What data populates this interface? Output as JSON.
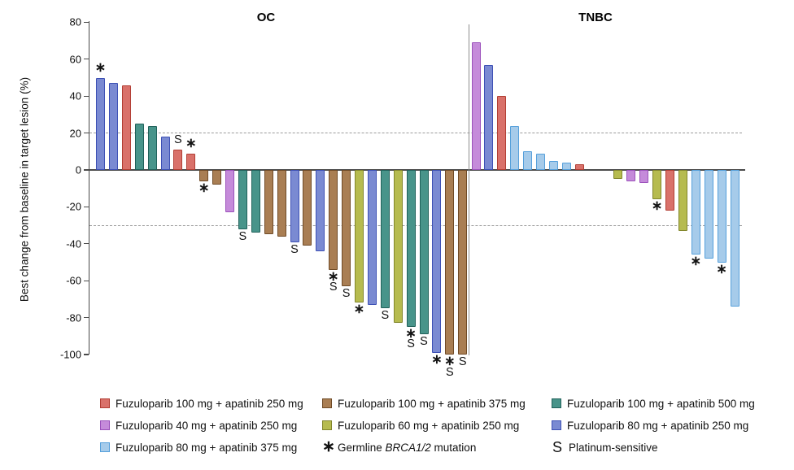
{
  "chart": {
    "chart_data": {
      "type": "bar",
      "subtype": "waterfall",
      "ylabel": "Best change from baseline in target lesion (%)",
      "ylim": [
        -100,
        80
      ],
      "yticks": [
        80,
        60,
        40,
        20,
        0,
        -20,
        -40,
        -60,
        -80,
        -100
      ],
      "reference_lines": [
        20,
        -30
      ],
      "legend_position": "bottom",
      "grid": "off"
    },
    "ylabel": "Best change from baseline in target lesion (%)",
    "yticks": [
      80,
      60,
      40,
      20,
      0,
      -20,
      -40,
      -60,
      -80,
      -100
    ],
    "reference_lines": [
      20,
      -30
    ],
    "doses": {
      "f100a250": {
        "label": "Fuzuloparib 100 mg + apatinib 250 mg",
        "fill": "#D9716A",
        "border": "#B23E34"
      },
      "f100a375": {
        "label": "Fuzuloparib 100 mg + apatinib 375 mg",
        "fill": "#A97E53",
        "border": "#6F4A26"
      },
      "f100a500": {
        "label": "Fuzuloparib 100 mg + apatinib 500 mg",
        "fill": "#48948A",
        "border": "#20615A"
      },
      "f40a250": {
        "label": "Fuzuloparib 40 mg + apatinib 250 mg",
        "fill": "#C58BDA",
        "border": "#9B51BB"
      },
      "f60a250": {
        "label": "Fuzuloparib 60 mg + apatinib 250 mg",
        "fill": "#B6BB4F",
        "border": "#82862C"
      },
      "f80a250": {
        "label": "Fuzuloparib 80 mg + apatinib 250 mg",
        "fill": "#7A8AD2",
        "border": "#3D50B5"
      },
      "f80a375": {
        "label": "Fuzuloparib 80 mg + apatinib 375 mg",
        "fill": "#A6CBEA",
        "border": "#56A0DB"
      }
    },
    "markers": {
      "star": {
        "symbol": "∗",
        "label_pre": "Germline ",
        "label_italic": "BRCA1/2",
        "label_post": " mutation"
      },
      "s": {
        "symbol": "S",
        "label": "Platinum-sensitive"
      }
    },
    "legend_columns": [
      [
        "f100a250",
        "f40a250",
        "f80a375"
      ],
      [
        "f100a375",
        "f60a250",
        "star"
      ],
      [
        "f100a500",
        "f80a250",
        "s"
      ]
    ],
    "groups": [
      {
        "name": "OC",
        "bars": [
          {
            "value": 50,
            "dose": "f80a250",
            "markers": [
              "star"
            ]
          },
          {
            "value": 47,
            "dose": "f80a250",
            "markers": []
          },
          {
            "value": 46,
            "dose": "f100a250",
            "markers": []
          },
          {
            "value": 25,
            "dose": "f100a500",
            "markers": []
          },
          {
            "value": 24,
            "dose": "f100a500",
            "markers": []
          },
          {
            "value": 18,
            "dose": "f80a250",
            "markers": []
          },
          {
            "value": 11,
            "dose": "f100a250",
            "markers": [
              "s"
            ]
          },
          {
            "value": 9,
            "dose": "f100a250",
            "markers": [
              "star"
            ]
          },
          {
            "value": -6,
            "dose": "f100a375",
            "markers": [
              "star"
            ]
          },
          {
            "value": -8,
            "dose": "f100a375",
            "markers": []
          },
          {
            "value": -23,
            "dose": "f40a250",
            "markers": []
          },
          {
            "value": -32,
            "dose": "f100a500",
            "markers": [
              "s"
            ]
          },
          {
            "value": -34,
            "dose": "f100a500",
            "markers": []
          },
          {
            "value": -35,
            "dose": "f100a375",
            "markers": []
          },
          {
            "value": -36,
            "dose": "f100a375",
            "markers": []
          },
          {
            "value": -39,
            "dose": "f80a250",
            "markers": [
              "s"
            ]
          },
          {
            "value": -41,
            "dose": "f100a375",
            "markers": []
          },
          {
            "value": -44,
            "dose": "f80a250",
            "markers": []
          },
          {
            "value": -54,
            "dose": "f100a375",
            "markers": [
              "star",
              "s"
            ]
          },
          {
            "value": -63,
            "dose": "f100a375",
            "markers": [
              "s"
            ]
          },
          {
            "value": -72,
            "dose": "f60a250",
            "markers": [
              "star"
            ]
          },
          {
            "value": -73,
            "dose": "f80a250",
            "markers": []
          },
          {
            "value": -75,
            "dose": "f100a500",
            "markers": [
              "s"
            ]
          },
          {
            "value": -83,
            "dose": "f60a250",
            "markers": []
          },
          {
            "value": -85,
            "dose": "f100a500",
            "markers": [
              "star",
              "s"
            ]
          },
          {
            "value": -89,
            "dose": "f100a500",
            "markers": [
              "s"
            ]
          },
          {
            "value": -99,
            "dose": "f80a250",
            "markers": [
              "star"
            ]
          },
          {
            "value": -100,
            "dose": "f100a375",
            "markers": [
              "star",
              "s"
            ]
          },
          {
            "value": -100,
            "dose": "f100a375",
            "markers": [
              "s"
            ]
          }
        ]
      },
      {
        "name": "TNBC",
        "gap_before_index": 9,
        "gap_slots": 2,
        "bars": [
          {
            "value": 69,
            "dose": "f40a250",
            "markers": []
          },
          {
            "value": 57,
            "dose": "f80a250",
            "markers": []
          },
          {
            "value": 40,
            "dose": "f100a250",
            "markers": []
          },
          {
            "value": 24,
            "dose": "f80a375",
            "markers": []
          },
          {
            "value": 10,
            "dose": "f80a375",
            "markers": []
          },
          {
            "value": 9,
            "dose": "f80a375",
            "markers": []
          },
          {
            "value": 5,
            "dose": "f80a375",
            "markers": []
          },
          {
            "value": 4,
            "dose": "f80a375",
            "markers": []
          },
          {
            "value": 3,
            "dose": "f100a250",
            "markers": []
          },
          {
            "value": -5,
            "dose": "f60a250",
            "markers": []
          },
          {
            "value": -6,
            "dose": "f40a250",
            "markers": []
          },
          {
            "value": -7,
            "dose": "f40a250",
            "markers": []
          },
          {
            "value": -16,
            "dose": "f60a250",
            "markers": [
              "star"
            ]
          },
          {
            "value": -22,
            "dose": "f100a250",
            "markers": []
          },
          {
            "value": -33,
            "dose": "f60a250",
            "markers": []
          },
          {
            "value": -46,
            "dose": "f80a375",
            "markers": [
              "star"
            ]
          },
          {
            "value": -48,
            "dose": "f80a375",
            "markers": []
          },
          {
            "value": -50,
            "dose": "f80a375",
            "markers": [
              "star"
            ]
          },
          {
            "value": -74,
            "dose": "f80a375",
            "markers": []
          }
        ]
      }
    ]
  }
}
